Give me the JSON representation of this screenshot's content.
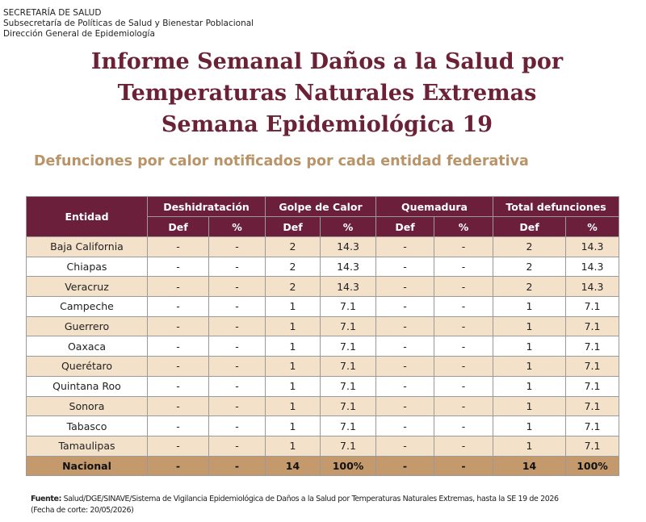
{
  "header": {
    "lines": [
      "SECRETARÍA DE SALUD",
      "Subsecretaría de Políticas de Salud y Bienestar Poblacional",
      "Dirección General de Epidemiología"
    ]
  },
  "title": {
    "lines": [
      "Informe Semanal  Daños a la Salud por",
      "Temperaturas Naturales Extremas",
      "Semana Epidemiológica 19"
    ]
  },
  "subtitle": "Defunciones por calor notificados por cada entidad federativa",
  "table": {
    "entity_header": "Entidad",
    "groups": [
      "Deshidratación",
      "Golpe de Calor",
      "Quemadura",
      "Total defunciones"
    ],
    "subheaders": [
      "Def",
      "%",
      "Def",
      "%",
      "Def",
      "%",
      "Def",
      "%"
    ],
    "rows": [
      [
        "Baja California",
        "-",
        "-",
        2,
        14.3,
        "-",
        "-",
        2,
        14.3
      ],
      [
        "Chiapas",
        "-",
        "-",
        2,
        14.3,
        "-",
        "-",
        2,
        14.3
      ],
      [
        "Veracruz",
        "-",
        "-",
        2,
        14.3,
        "-",
        "-",
        2,
        14.3
      ],
      [
        "Campeche",
        "-",
        "-",
        1,
        7.1,
        "-",
        "-",
        1,
        7.1
      ],
      [
        "Guerrero",
        "-",
        "-",
        1,
        7.1,
        "-",
        "-",
        1,
        7.1
      ],
      [
        "Oaxaca",
        "-",
        "-",
        1,
        7.1,
        "-",
        "-",
        1,
        7.1
      ],
      [
        "Querétaro",
        "-",
        "-",
        1,
        7.1,
        "-",
        "-",
        1,
        7.1
      ],
      [
        "Quintana Roo",
        "-",
        "-",
        1,
        7.1,
        "-",
        "-",
        1,
        7.1
      ],
      [
        "Sonora",
        "-",
        "-",
        1,
        7.1,
        "-",
        "-",
        1,
        7.1
      ],
      [
        "Tabasco",
        "-",
        "-",
        1,
        7.1,
        "-",
        "-",
        1,
        7.1
      ],
      [
        "Tamaulipas",
        "-",
        "-",
        1,
        7.1,
        "-",
        "-",
        1,
        7.1
      ]
    ],
    "total": [
      "Nacional",
      "-",
      "-",
      14,
      "100%",
      "-",
      "-",
      14,
      "100%"
    ]
  },
  "footnote": {
    "source_label": "Fuente:",
    "source_text": " Salud/DGE/SINAVE/Sistema de Vigilancia Epidemiológica de Daños a la Salud por Temperaturas Naturales Extremas, hasta la SE 19 de 2026",
    "cutoff": "(Fecha de corte: 20/05/2026)"
  }
}
